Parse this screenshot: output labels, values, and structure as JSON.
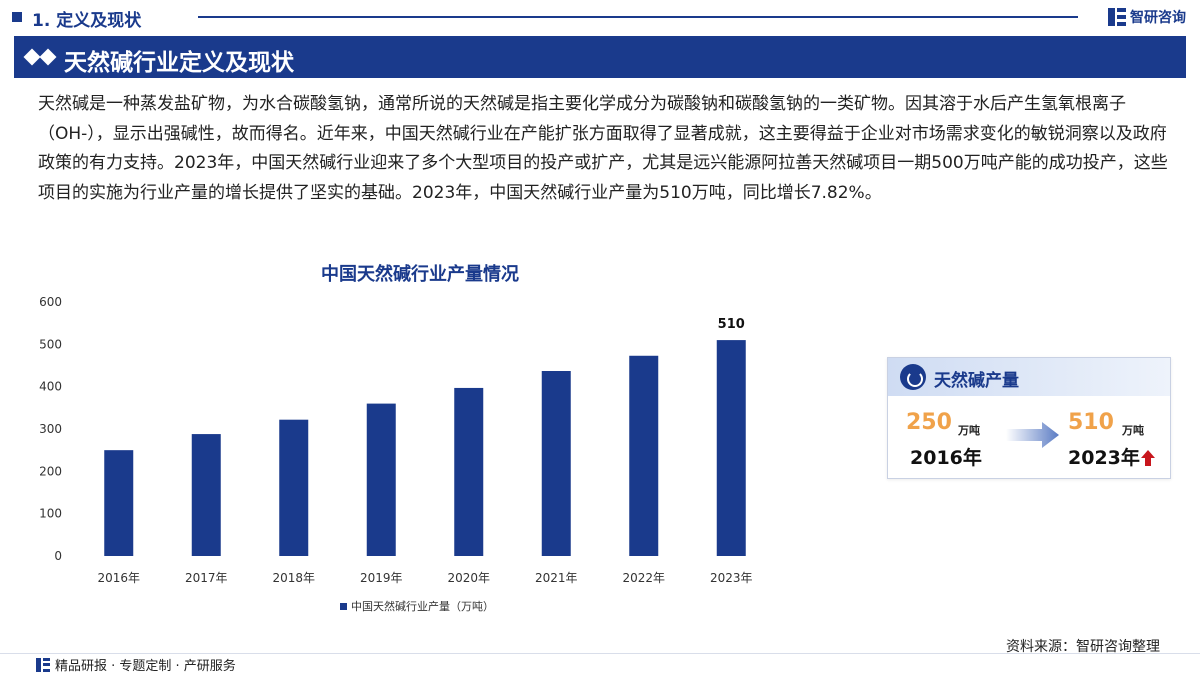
{
  "header": {
    "section_title": "1. 定义及现状",
    "brand_name": "智研咨询"
  },
  "banner": {
    "title": "天然碱行业定义及现状"
  },
  "intro": {
    "paragraph": "天然碱是一种蒸发盐矿物，为水合碳酸氢钠，通常所说的天然碱是指主要化学成分为碳酸钠和碳酸氢钠的一类矿物。因其溶于水后产生氢氧根离子（OH-），显示出强碱性，故而得名。近年来，中国天然碱行业在产能扩张方面取得了显著成就，这主要得益于企业对市场需求变化的敏锐洞察以及政府政策的有力支持。2023年，中国天然碱行业迎来了多个大型项目的投产或扩产，尤其是远兴能源阿拉善天然碱项目一期500万吨产能的成功投产，这些项目的实施为行业产量的增长提供了坚实的基础。2023年，中国天然碱行业产量为510万吨，同比增长7.82%。"
  },
  "chart_data": {
    "type": "bar",
    "title": "中国天然碱行业产量情况",
    "categories": [
      "2016年",
      "2017年",
      "2018年",
      "2019年",
      "2020年",
      "2021年",
      "2022年",
      "2023年"
    ],
    "series": [
      {
        "name": "中国天然碱行业产量（万吨）",
        "values": [
          250,
          288,
          322,
          360,
          397,
          437,
          473,
          510
        ]
      }
    ],
    "data_labels": [
      null,
      null,
      null,
      null,
      null,
      null,
      null,
      "510"
    ],
    "yticks": [
      "0",
      "100",
      "200",
      "300",
      "400",
      "500",
      "600"
    ],
    "ylim": [
      0,
      600
    ],
    "grid": false,
    "legend": "bottom",
    "bar_color": "#1a3a8c"
  },
  "card": {
    "title": "天然碱产量",
    "start_value": "250",
    "start_unit": "万吨",
    "start_year": "2016年",
    "end_value": "510",
    "end_unit": "万吨",
    "end_year": "2023年",
    "trend_icon": "up-arrow-icon",
    "accent_color": "#f0a24a",
    "trend_color": "#c8161d"
  },
  "footer": {
    "source": "资料来源：智研咨询整理",
    "slogan": "精品研报 · 专题定制 · 产研服务"
  }
}
